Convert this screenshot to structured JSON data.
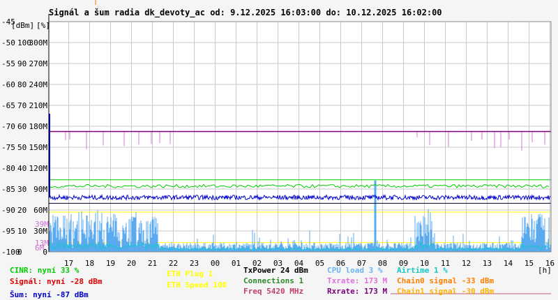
{
  "title": "Signál a šum radia dk_devoty_ac od: 9.12.2025 16:03:00 do: 10.12.2025 16:02:00",
  "colors": {
    "background": "#f5f5f5",
    "plot_bg": "#ffffff",
    "grid": "#c8c8c8",
    "noise": "#0000cc",
    "signal": "#c0000e",
    "cinr": "#00cc00",
    "txrate": "#e070e0",
    "rxrate": "#7a007a",
    "cpu": "#5aaaf0",
    "airtime": "#10c8c8",
    "eth_speed": "#ffff00",
    "connections": "#2aa02a",
    "chain1": "#ffb000",
    "chain0": "#ff8000"
  },
  "legend": {
    "cinr": "CINR: nyní 33 %",
    "signal": "Signál: nyní -28 dBm",
    "noise": "Šum: nyní -87 dBm",
    "eth_plug": "ETH Plug 1",
    "eth_speed": "ETH Speed 100",
    "txpower": "TxPower 24 dBm",
    "connections": "Connections 1",
    "freq": "Freq 5420 MHz",
    "cpu": "CPU load 3 %",
    "txrate": "Txrate: 173 M",
    "rxrate": "Rxrate: 173 M",
    "airtime": "Airtime 1 %",
    "chain0": "Chain0 signal -33 dBm",
    "chain1": "Chain1 signal -30 dBm"
  },
  "chart_data": {
    "type": "line",
    "title": "Signál a šum radia dk_devoty_ac od: 9.12.2025 16:03:00 do: 10.12.2025 16:02:00",
    "xlabel": "[h]",
    "ylabel_dbm": "[dBm]",
    "ylabel_pct": "[%]",
    "y_ticks_dbm": [
      "-45",
      "-50",
      "-55",
      "-60",
      "-65",
      "-70",
      "-75",
      "-80",
      "-85",
      "-90",
      "-95",
      "-100"
    ],
    "y_ticks_pct": [
      "",
      "100",
      "90",
      "80",
      "70",
      "60",
      "50",
      "40",
      "30",
      "20",
      "10",
      "0"
    ],
    "y_ticks_rate": [
      "",
      "300M",
      "270M",
      "240M",
      "210M",
      "180M",
      "150M",
      "120M",
      "90M",
      "60M",
      "30M",
      "0"
    ],
    "ylim_dbm": [
      -100,
      -45
    ],
    "x_ticks": [
      "17",
      "18",
      "19",
      "20",
      "21",
      "22",
      "23",
      "00",
      "01",
      "02",
      "03",
      "04",
      "05",
      "06",
      "07",
      "08",
      "09",
      "10",
      "11",
      "12",
      "13",
      "14",
      "15",
      "16"
    ],
    "inline_markers": [
      "39M",
      "13M",
      "6M"
    ],
    "series": [
      {
        "name": "Šum",
        "values_dbm": -87
      },
      {
        "name": "Signál",
        "values_dbm": -28
      },
      {
        "name": "CINR",
        "percent": 33
      },
      {
        "name": "Txrate",
        "mbps": 173
      },
      {
        "name": "Rxrate",
        "mbps": 173
      },
      {
        "name": "CPU load",
        "percent": 3
      },
      {
        "name": "Airtime",
        "percent": 1
      }
    ]
  }
}
